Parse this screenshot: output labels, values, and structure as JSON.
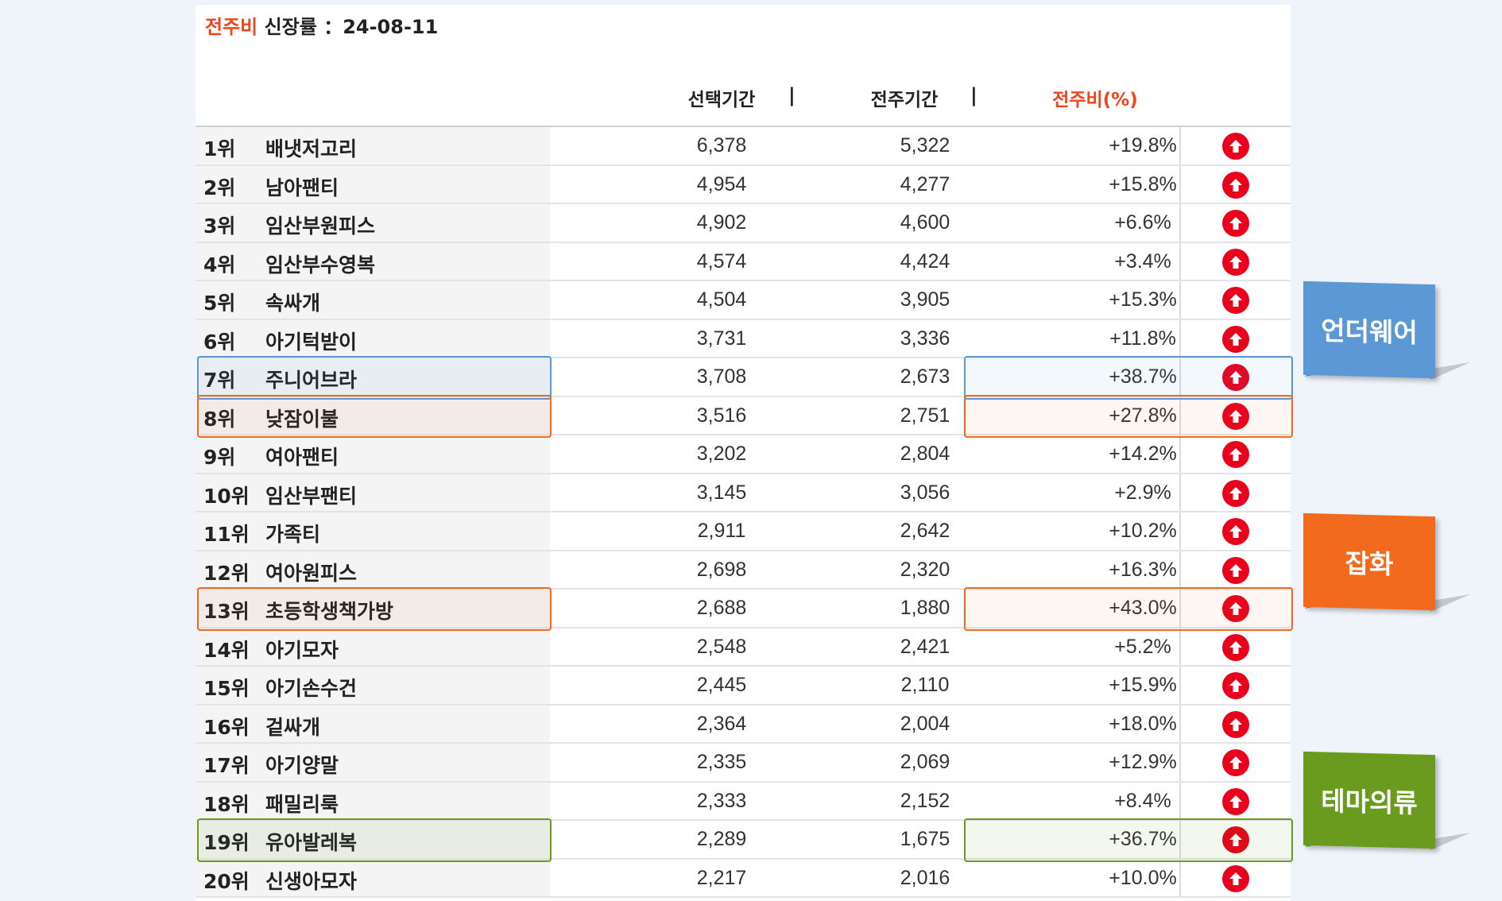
{
  "title": {
    "accent": "전주비",
    "rest": " 신장률 ：24-08-11"
  },
  "headers": {
    "selected": "선택기간",
    "previous": "전주기간",
    "ratio": "전주비(%)",
    "separator": "|"
  },
  "colors": {
    "accent": "#f0441c",
    "up": "#e8001c",
    "blue": "#5c97d6",
    "orange": "#f26a1e",
    "green": "#6a9a1e"
  },
  "rows": [
    {
      "rank": "1위",
      "name": "배냇저고리",
      "selected": "6,378",
      "previous": "5,322",
      "ratio": "+19.8%",
      "trend": "up-arrow-icon"
    },
    {
      "rank": "2위",
      "name": "남아팬티",
      "selected": "4,954",
      "previous": "4,277",
      "ratio": "+15.8%",
      "trend": "up-arrow-icon"
    },
    {
      "rank": "3위",
      "name": "임산부원피스",
      "selected": "4,902",
      "previous": "4,600",
      "ratio": "+6.6%",
      "trend": "up-arrow-icon"
    },
    {
      "rank": "4위",
      "name": "임산부수영복",
      "selected": "4,574",
      "previous": "4,424",
      "ratio": "+3.4%",
      "trend": "up-arrow-icon"
    },
    {
      "rank": "5위",
      "name": "속싸개",
      "selected": "4,504",
      "previous": "3,905",
      "ratio": "+15.3%",
      "trend": "up-arrow-icon"
    },
    {
      "rank": "6위",
      "name": "아기턱받이",
      "selected": "3,731",
      "previous": "3,336",
      "ratio": "+11.8%",
      "trend": "up-arrow-icon"
    },
    {
      "rank": "7위",
      "name": "주니어브라",
      "selected": "3,708",
      "previous": "2,673",
      "ratio": "+38.7%",
      "trend": "up-arrow-icon",
      "highlight": "blue"
    },
    {
      "rank": "8위",
      "name": "낮잠이불",
      "selected": "3,516",
      "previous": "2,751",
      "ratio": "+27.8%",
      "trend": "up-arrow-icon",
      "highlight": "orange"
    },
    {
      "rank": "9위",
      "name": "여아팬티",
      "selected": "3,202",
      "previous": "2,804",
      "ratio": "+14.2%",
      "trend": "up-arrow-icon"
    },
    {
      "rank": "10위",
      "name": "임산부팬티",
      "selected": "3,145",
      "previous": "3,056",
      "ratio": "+2.9%",
      "trend": "up-arrow-icon"
    },
    {
      "rank": "11위",
      "name": "가족티",
      "selected": "2,911",
      "previous": "2,642",
      "ratio": "+10.2%",
      "trend": "up-arrow-icon"
    },
    {
      "rank": "12위",
      "name": "여아원피스",
      "selected": "2,698",
      "previous": "2,320",
      "ratio": "+16.3%",
      "trend": "up-arrow-icon"
    },
    {
      "rank": "13위",
      "name": "초등학생책가방",
      "selected": "2,688",
      "previous": "1,880",
      "ratio": "+43.0%",
      "trend": "up-arrow-icon",
      "highlight": "orange"
    },
    {
      "rank": "14위",
      "name": "아기모자",
      "selected": "2,548",
      "previous": "2,421",
      "ratio": "+5.2%",
      "trend": "up-arrow-icon"
    },
    {
      "rank": "15위",
      "name": "아기손수건",
      "selected": "2,445",
      "previous": "2,110",
      "ratio": "+15.9%",
      "trend": "up-arrow-icon"
    },
    {
      "rank": "16위",
      "name": "겉싸개",
      "selected": "2,364",
      "previous": "2,004",
      "ratio": "+18.0%",
      "trend": "up-arrow-icon"
    },
    {
      "rank": "17위",
      "name": "아기양말",
      "selected": "2,335",
      "previous": "2,069",
      "ratio": "+12.9%",
      "trend": "up-arrow-icon"
    },
    {
      "rank": "18위",
      "name": "패밀리룩",
      "selected": "2,333",
      "previous": "2,152",
      "ratio": "+8.4%",
      "trend": "up-arrow-icon"
    },
    {
      "rank": "19위",
      "name": "유아발레복",
      "selected": "2,289",
      "previous": "1,675",
      "ratio": "+36.7%",
      "trend": "up-arrow-icon",
      "highlight": "green"
    },
    {
      "rank": "20위",
      "name": "신생아모자",
      "selected": "2,217",
      "previous": "2,016",
      "ratio": "+10.0%",
      "trend": "up-arrow-icon"
    }
  ],
  "callouts": [
    {
      "label": "언더웨어",
      "color": "blue"
    },
    {
      "label": "잡화",
      "color": "orange"
    },
    {
      "label": "테마의류",
      "color": "green"
    }
  ]
}
